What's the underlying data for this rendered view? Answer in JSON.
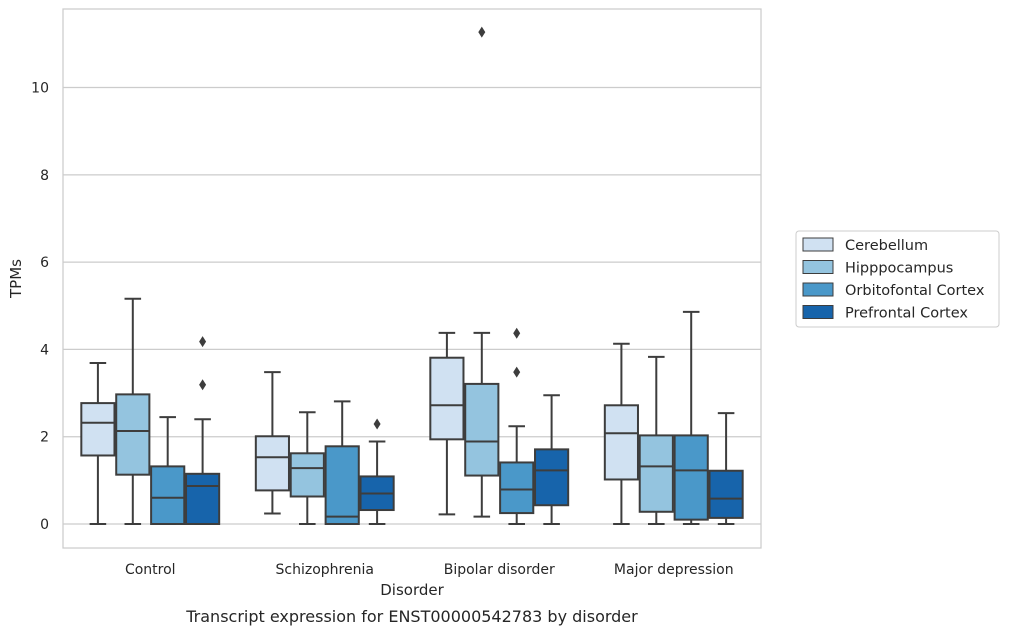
{
  "chart_data": {
    "type": "box",
    "caption": "Transcript expression for ENST00000542783 by disorder",
    "xlabel": "Disorder",
    "ylabel": "TPMs",
    "ylim": [
      -0.55,
      11.8
    ],
    "yticks": [
      0,
      2,
      4,
      6,
      8,
      10
    ],
    "grid": "horizontal",
    "legend_placement": "right",
    "categories": [
      "Control",
      "Schizophrenia",
      "Bipolar disorder",
      "Major depression"
    ],
    "series": [
      {
        "name": "Cerebellum",
        "color": "#d0e1f2",
        "boxes": [
          {
            "whisker_low": 0.0,
            "q1": 1.57,
            "median": 2.32,
            "q3": 2.77,
            "whisker_high": 3.69,
            "outliers": []
          },
          {
            "whisker_low": 0.24,
            "q1": 0.77,
            "median": 1.53,
            "q3": 2.01,
            "whisker_high": 3.48,
            "outliers": []
          },
          {
            "whisker_low": 0.22,
            "q1": 1.94,
            "median": 2.72,
            "q3": 3.81,
            "whisker_high": 4.38,
            "outliers": []
          },
          {
            "whisker_low": 0.0,
            "q1": 1.02,
            "median": 2.08,
            "q3": 2.72,
            "whisker_high": 4.13,
            "outliers": []
          }
        ]
      },
      {
        "name": "Hipppocampus",
        "color": "#94c4df",
        "boxes": [
          {
            "whisker_low": 0.0,
            "q1": 1.13,
            "median": 2.13,
            "q3": 2.97,
            "whisker_high": 5.16,
            "outliers": []
          },
          {
            "whisker_low": 0.0,
            "q1": 0.63,
            "median": 1.28,
            "q3": 1.62,
            "whisker_high": 2.56,
            "outliers": []
          },
          {
            "whisker_low": 0.17,
            "q1": 1.11,
            "median": 1.89,
            "q3": 3.21,
            "whisker_high": 4.38,
            "outliers": [
              11.27
            ]
          },
          {
            "whisker_low": 0.0,
            "q1": 0.28,
            "median": 1.32,
            "q3": 2.03,
            "whisker_high": 3.83,
            "outliers": []
          }
        ]
      },
      {
        "name": "Orbitofontal Cortex",
        "color": "#4a98c9",
        "boxes": [
          {
            "whisker_low": 0.0,
            "q1": 0.0,
            "median": 0.6,
            "q3": 1.32,
            "whisker_high": 2.45,
            "outliers": []
          },
          {
            "whisker_low": 0.0,
            "q1": 0.0,
            "median": 0.17,
            "q3": 1.78,
            "whisker_high": 2.81,
            "outliers": []
          },
          {
            "whisker_low": 0.0,
            "q1": 0.25,
            "median": 0.79,
            "q3": 1.41,
            "whisker_high": 2.24,
            "outliers": [
              4.37,
              3.48
            ]
          },
          {
            "whisker_low": 0.0,
            "q1": 0.1,
            "median": 1.23,
            "q3": 2.03,
            "whisker_high": 4.86,
            "outliers": []
          }
        ]
      },
      {
        "name": "Prefrontal Cortex",
        "color": "#1764ab",
        "boxes": [
          {
            "whisker_low": 0.0,
            "q1": 0.0,
            "median": 0.87,
            "q3": 1.15,
            "whisker_high": 2.4,
            "outliers": [
              4.18,
              3.19
            ]
          },
          {
            "whisker_low": 0.0,
            "q1": 0.32,
            "median": 0.7,
            "q3": 1.09,
            "whisker_high": 1.89,
            "outliers": [
              2.29
            ]
          },
          {
            "whisker_low": 0.0,
            "q1": 0.43,
            "median": 1.23,
            "q3": 1.71,
            "whisker_high": 2.95,
            "outliers": []
          },
          {
            "whisker_low": 0.0,
            "q1": 0.14,
            "median": 0.58,
            "q3": 1.22,
            "whisker_high": 2.54,
            "outliers": []
          }
        ]
      }
    ]
  }
}
